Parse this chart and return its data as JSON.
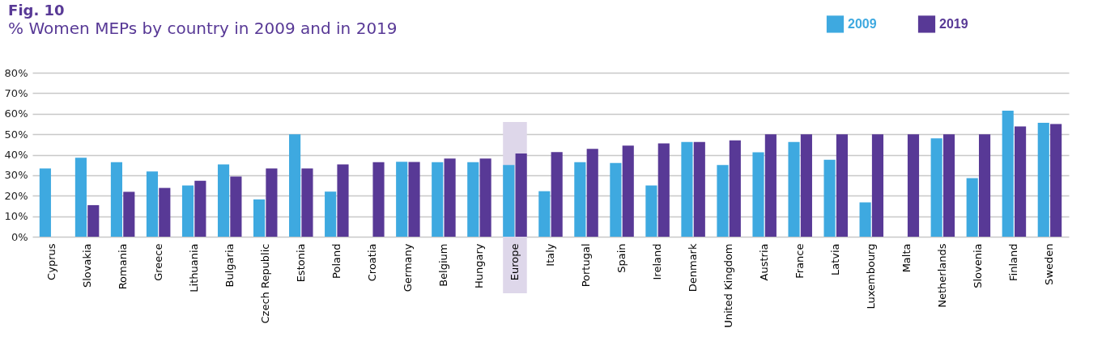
{
  "chart_data": {
    "type": "bar",
    "title": "Fig. 10",
    "subtitle": "% Women MEPs by country in 2009 and in 2019",
    "categories": [
      "Cyprus",
      "Slovakia",
      "Romania",
      "Greece",
      "Lithuania",
      "Bulgaria",
      "Czech Republic",
      "Estonia",
      "Poland",
      "Croatia",
      "Germany",
      "Belgium",
      "Hungary",
      "Europe",
      "Italy",
      "Portugal",
      "Spain",
      "Ireland",
      "Denmark",
      "United Kingdom",
      "Austria",
      "France",
      "Latvia",
      "Luxembourg",
      "Malta",
      "Netherlands",
      "Slovenia",
      "Finland",
      "Sweden"
    ],
    "series": [
      {
        "name": "2009",
        "color": "#3ea9e0",
        "values": [
          33.3,
          38.5,
          36.4,
          31.8,
          25.0,
          35.3,
          18.2,
          50.0,
          22.0,
          0,
          36.6,
          36.4,
          36.4,
          35.0,
          22.2,
          36.4,
          36.0,
          25.0,
          46.2,
          35.0,
          41.2,
          46.2,
          37.5,
          16.7,
          0,
          48.0,
          28.6,
          61.5,
          55.6
        ]
      },
      {
        "name": "2019",
        "color": "#583996",
        "values": [
          0,
          15.4,
          21.9,
          23.8,
          27.3,
          29.4,
          33.3,
          33.3,
          35.3,
          36.4,
          36.5,
          38.1,
          38.1,
          40.6,
          41.3,
          42.9,
          44.4,
          45.5,
          46.2,
          47.0,
          50.0,
          50.0,
          50.0,
          50.0,
          50.0,
          50.0,
          50.0,
          53.8,
          55.0
        ]
      }
    ],
    "ylim": [
      0,
      80
    ],
    "yticks": [
      {
        "value": 0,
        "label": "0%"
      },
      {
        "value": 10,
        "label": "10%"
      },
      {
        "value": 20,
        "label": "20%"
      },
      {
        "value": 30,
        "label": "30%"
      },
      {
        "value": 40,
        "label": "40%"
      },
      {
        "value": 50,
        "label": "50%"
      },
      {
        "value": 60,
        "label": "60%"
      },
      {
        "value": 70,
        "label": "70%"
      },
      {
        "value": 80,
        "label": "80%"
      }
    ],
    "grid": "y",
    "legend": "top right",
    "bands": [
      {
        "axis": "x",
        "from": "Europe",
        "to": "Europe",
        "color": "#ded7ea"
      }
    ]
  }
}
